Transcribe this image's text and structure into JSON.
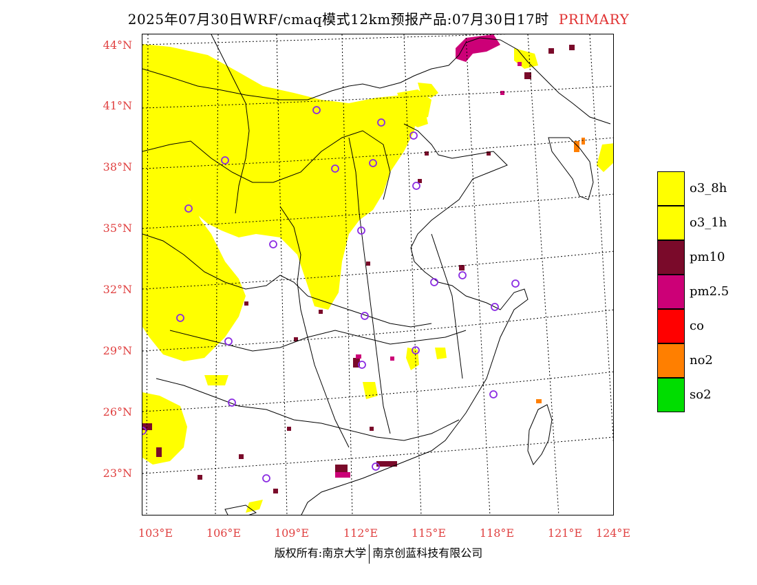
{
  "title": {
    "main": "2025年07月30日WRF/cmaq模式12km预报产品:07月30日17时",
    "tag": "PRIMARY"
  },
  "axes": {
    "lat_labels": [
      "44°N",
      "41°N",
      "38°N",
      "35°N",
      "32°N",
      "29°N",
      "26°N",
      "23°N"
    ],
    "lon_labels": [
      "103°E",
      "106°E",
      "109°E",
      "112°E",
      "115°E",
      "118°E",
      "121°E",
      "124°E"
    ]
  },
  "legend": [
    {
      "label": "o3_8h",
      "color": "#ffff00"
    },
    {
      "label": "o3_1h",
      "color": "#ffff00"
    },
    {
      "label": "pm10",
      "color": "#7a0a2a"
    },
    {
      "label": "pm2.5",
      "color": "#cc0077"
    },
    {
      "label": "co",
      "color": "#ff0000"
    },
    {
      "label": "no2",
      "color": "#ff7f00"
    },
    {
      "label": "so2",
      "color": "#00dd00"
    }
  ],
  "colors": {
    "label": "#e04040",
    "station_marker": "#8a2be2",
    "o3": "#ffff00",
    "pm10": "#7a0a2a",
    "pm25": "#cc0077",
    "no2": "#ff7f00"
  },
  "footer": {
    "left": "版权所有:南京大学",
    "right": "南京创蓝科技有限公司"
  }
}
